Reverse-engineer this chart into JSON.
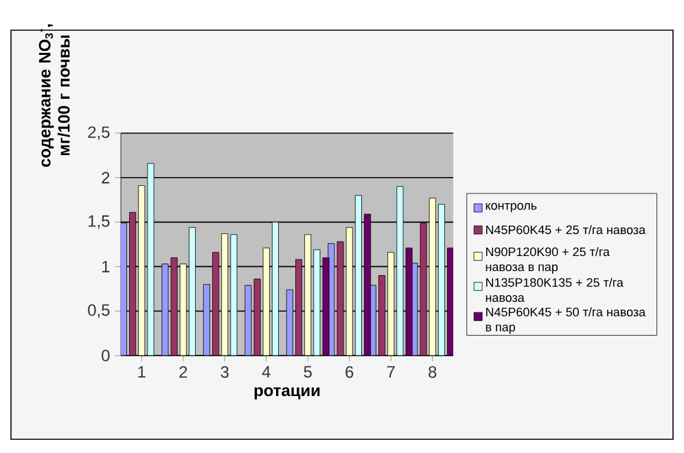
{
  "chart_data": {
    "type": "bar",
    "xlabel": "ротации",
    "ylabel": "содержание NO$_{3}$$^{-}$, мг/100 г почвы",
    "categories": [
      "1",
      "2",
      "3",
      "4",
      "5",
      "6",
      "7",
      "8"
    ],
    "series": [
      {
        "name": "контроль",
        "color": "#9999ff",
        "values": [
          1.49,
          1.03,
          0.8,
          0.79,
          0.74,
          1.26,
          0.79,
          1.04
        ]
      },
      {
        "name": "N45P60K45 + 25 т/га навоза",
        "color": "#993366",
        "values": [
          1.61,
          1.1,
          1.16,
          0.86,
          1.08,
          1.28,
          0.9,
          1.49
        ]
      },
      {
        "name": "N90P120K90 + 25 т/га навоза в пар",
        "color": "#ffffcc",
        "values": [
          1.91,
          1.03,
          1.37,
          1.21,
          1.36,
          1.44,
          1.16,
          1.77
        ]
      },
      {
        "name": "N135P180K135 + 25 т/га навоза",
        "color": "#ccffff",
        "values": [
          2.16,
          1.44,
          1.36,
          1.5,
          1.19,
          1.8,
          1.9,
          1.7
        ]
      },
      {
        "name": "N45P60K45 + 50 т/га навоза в пар",
        "color": "#660066",
        "values": [
          null,
          null,
          null,
          null,
          1.1,
          1.59,
          1.21,
          1.21
        ]
      }
    ],
    "ylim": [
      0,
      2.5
    ],
    "yticks": [
      0,
      {
        "value": 0.5,
        "label": "0,5"
      },
      1,
      {
        "value": 1.5,
        "label": "1,5"
      },
      2,
      {
        "value": 2.5,
        "label": "2,5"
      }
    ],
    "grid": "y",
    "legend": "right"
  }
}
